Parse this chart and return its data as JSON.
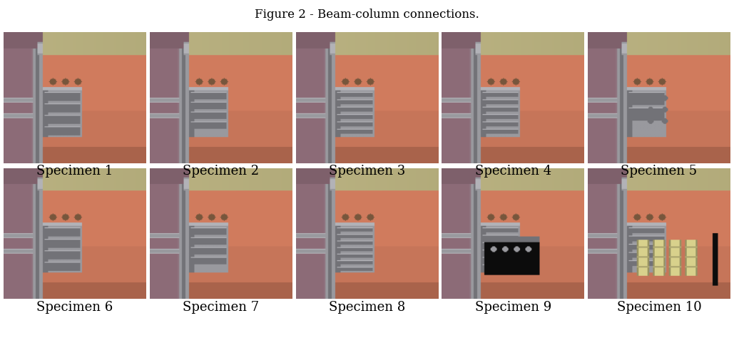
{
  "title": "Figure 2 - Beam-column connections.",
  "title_fontsize": 12,
  "labels": [
    "Specimen 1",
    "Specimen 2",
    "Specimen 3",
    "Specimen 4",
    "Specimen 5",
    "Specimen 6",
    "Specimen 7",
    "Specimen 8",
    "Specimen 9",
    "Specimen 10"
  ],
  "label_fontsize": 13,
  "nrows": 2,
  "ncols": 5,
  "fig_width": 10.29,
  "fig_height": 4.74,
  "background_color": "#ffffff",
  "colors": {
    "tan_bg": [
      0.72,
      0.69,
      0.5
    ],
    "purple": [
      0.55,
      0.42,
      0.47
    ],
    "salmon": [
      0.78,
      0.46,
      0.35
    ],
    "gray_col": [
      0.6,
      0.6,
      0.62
    ],
    "gray_dark": [
      0.45,
      0.45,
      0.47
    ],
    "gray_light": [
      0.7,
      0.7,
      0.72
    ],
    "brown_bolt": [
      0.55,
      0.4,
      0.28
    ],
    "rust": [
      0.65,
      0.4,
      0.28
    ],
    "black": [
      0.05,
      0.05,
      0.05
    ],
    "yellow": [
      0.85,
      0.82,
      0.55
    ],
    "blue_accent": [
      0.35,
      0.45,
      0.55
    ]
  }
}
